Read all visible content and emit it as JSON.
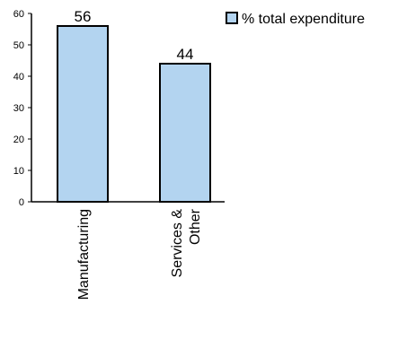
{
  "chart_data": {
    "type": "bar",
    "categories": [
      [
        "Manufacturing"
      ],
      [
        "Services &",
        "Other"
      ]
    ],
    "series": [
      {
        "name": "% total expenditure",
        "values": [
          56,
          44
        ],
        "data_labels": [
          "56",
          "44"
        ]
      }
    ],
    "ylim": [
      0,
      60
    ],
    "yticks": [
      "0",
      "10",
      "20",
      "30",
      "40",
      "50",
      "60"
    ],
    "grid": false,
    "legend_position": "top-right",
    "colors": {
      "bar_fill": "#b3d4f0",
      "bar_stroke": "#000000",
      "axis": "#000000",
      "text": "#000000"
    }
  }
}
